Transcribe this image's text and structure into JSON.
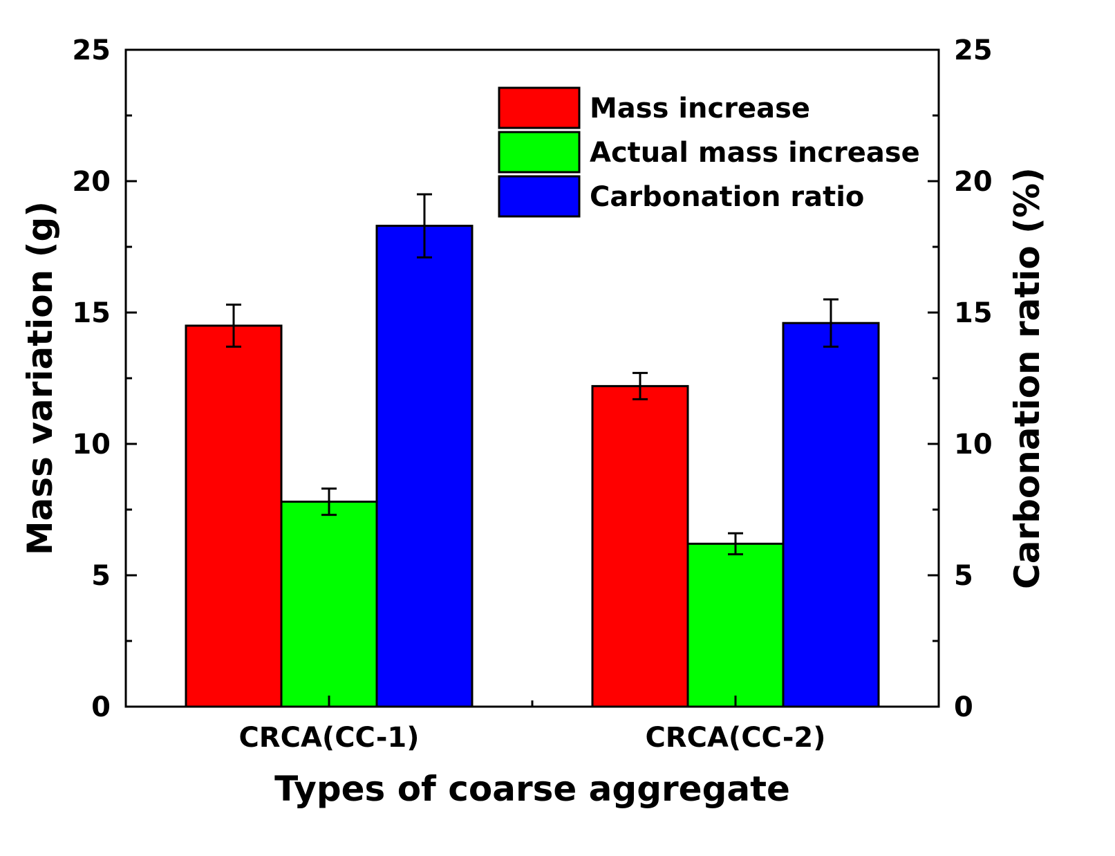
{
  "chart_data": {
    "type": "bar",
    "categories": [
      "CRCA(CC-1)",
      "CRCA(CC-2)"
    ],
    "series": [
      {
        "name": "Mass increase",
        "values": [
          14.5,
          12.2
        ],
        "errors": [
          0.8,
          0.5
        ],
        "color": "#ff0000",
        "axis": "left"
      },
      {
        "name": "Actual mass increase",
        "values": [
          7.8,
          6.2
        ],
        "errors": [
          0.5,
          0.4
        ],
        "color": "#00ff00",
        "axis": "left"
      },
      {
        "name": "Carbonation ratio",
        "values": [
          18.3,
          14.6
        ],
        "errors": [
          1.2,
          0.9
        ],
        "color": "#0000ff",
        "axis": "right"
      }
    ],
    "xlabel": "Types of coarse aggregate",
    "ylabel": "Mass variation (g)",
    "y2label": "Carbonation ratio (%)",
    "ylim": [
      0,
      25
    ],
    "y2lim": [
      0,
      25
    ],
    "yticks": [
      "0",
      "5",
      "10",
      "15",
      "20",
      "25"
    ],
    "y2ticks": [
      "0",
      "5",
      "10",
      "15",
      "20",
      "25"
    ],
    "legend_position": "top-right",
    "grid": false
  }
}
